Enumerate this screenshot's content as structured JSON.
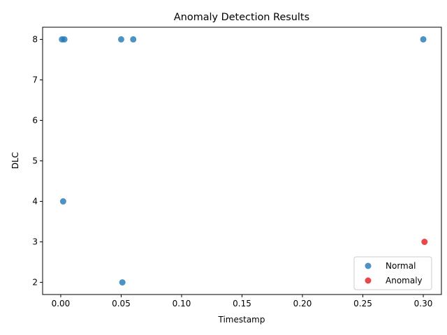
{
  "chart_data": {
    "type": "scatter",
    "title": "Anomaly Detection Results",
    "xlabel": "Timestamp",
    "ylabel": "DLC",
    "xlim": [
      -0.015,
      0.315
    ],
    "ylim": [
      1.7,
      8.3
    ],
    "x_ticks": [
      0.0,
      0.05,
      0.1,
      0.15,
      0.2,
      0.25,
      0.3
    ],
    "x_tick_labels": [
      "0.00",
      "0.05",
      "0.10",
      "0.15",
      "0.20",
      "0.25",
      "0.30"
    ],
    "y_ticks": [
      2,
      3,
      4,
      5,
      6,
      7,
      8
    ],
    "y_tick_labels": [
      "2",
      "3",
      "4",
      "5",
      "6",
      "7",
      "8"
    ],
    "grid": false,
    "legend_position": "lower-right",
    "series": [
      {
        "name": "Normal",
        "color": "#1f77b4",
        "points": [
          {
            "x": 0.001,
            "y": 8
          },
          {
            "x": 0.003,
            "y": 8
          },
          {
            "x": 0.002,
            "y": 4
          },
          {
            "x": 0.05,
            "y": 8
          },
          {
            "x": 0.06,
            "y": 8
          },
          {
            "x": 0.051,
            "y": 2
          },
          {
            "x": 0.3,
            "y": 8
          }
        ]
      },
      {
        "name": "Anomaly",
        "color": "#e41a1c",
        "points": [
          {
            "x": 0.301,
            "y": 3
          }
        ]
      }
    ]
  }
}
